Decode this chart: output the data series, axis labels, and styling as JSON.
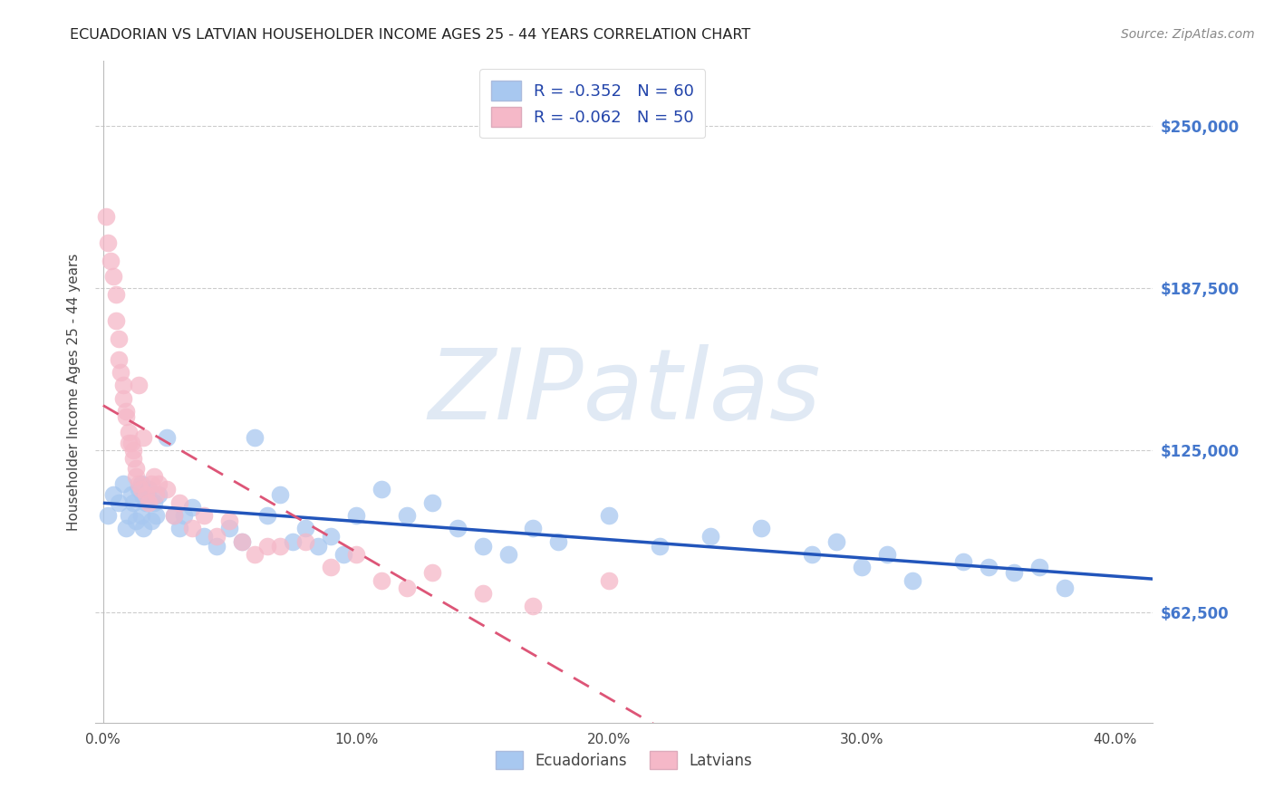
{
  "title": "ECUADORIAN VS LATVIAN HOUSEHOLDER INCOME AGES 25 - 44 YEARS CORRELATION CHART",
  "source": "Source: ZipAtlas.com",
  "ylabel": "Householder Income Ages 25 - 44 years",
  "x_tick_labels": [
    "0.0%",
    "10.0%",
    "20.0%",
    "30.0%",
    "40.0%"
  ],
  "x_tick_vals": [
    0.0,
    0.1,
    0.2,
    0.3,
    0.4
  ],
  "y_tick_labels": [
    "$62,500",
    "$125,000",
    "$187,500",
    "$250,000"
  ],
  "y_tick_vals": [
    62500,
    125000,
    187500,
    250000
  ],
  "xlim": [
    -0.003,
    0.415
  ],
  "ylim": [
    20000,
    275000
  ],
  "legend_label1": "R = -0.352   N = 60",
  "legend_label2": "R = -0.062   N = 50",
  "color_blue": "#A8C8F0",
  "color_pink": "#F5B8C8",
  "color_blue_line": "#2255BB",
  "color_pink_line": "#DD5577",
  "watermark": "ZIPatlas",
  "blue_x": [
    0.002,
    0.004,
    0.006,
    0.008,
    0.009,
    0.01,
    0.011,
    0.012,
    0.013,
    0.014,
    0.015,
    0.015,
    0.016,
    0.016,
    0.017,
    0.018,
    0.019,
    0.02,
    0.021,
    0.022,
    0.025,
    0.028,
    0.03,
    0.032,
    0.035,
    0.04,
    0.045,
    0.05,
    0.055,
    0.06,
    0.065,
    0.07,
    0.075,
    0.08,
    0.085,
    0.09,
    0.095,
    0.1,
    0.11,
    0.12,
    0.13,
    0.14,
    0.15,
    0.16,
    0.17,
    0.18,
    0.2,
    0.22,
    0.24,
    0.26,
    0.28,
    0.29,
    0.3,
    0.31,
    0.32,
    0.34,
    0.35,
    0.36,
    0.37,
    0.38
  ],
  "blue_y": [
    100000,
    108000,
    105000,
    112000,
    95000,
    100000,
    108000,
    105000,
    98000,
    110000,
    100000,
    112000,
    107000,
    95000,
    105000,
    110000,
    98000,
    105000,
    100000,
    108000,
    130000,
    100000,
    95000,
    100000,
    103000,
    92000,
    88000,
    95000,
    90000,
    130000,
    100000,
    108000,
    90000,
    95000,
    88000,
    92000,
    85000,
    100000,
    110000,
    100000,
    105000,
    95000,
    88000,
    85000,
    95000,
    90000,
    100000,
    88000,
    92000,
    95000,
    85000,
    90000,
    80000,
    85000,
    75000,
    82000,
    80000,
    78000,
    80000,
    72000
  ],
  "pink_x": [
    0.001,
    0.002,
    0.003,
    0.004,
    0.005,
    0.005,
    0.006,
    0.006,
    0.007,
    0.008,
    0.008,
    0.009,
    0.009,
    0.01,
    0.01,
    0.011,
    0.012,
    0.012,
    0.013,
    0.013,
    0.014,
    0.014,
    0.015,
    0.016,
    0.017,
    0.018,
    0.019,
    0.02,
    0.021,
    0.022,
    0.025,
    0.028,
    0.03,
    0.035,
    0.04,
    0.045,
    0.05,
    0.055,
    0.06,
    0.065,
    0.07,
    0.08,
    0.09,
    0.1,
    0.11,
    0.12,
    0.13,
    0.15,
    0.17,
    0.2
  ],
  "pink_y": [
    215000,
    205000,
    198000,
    192000,
    185000,
    175000,
    168000,
    160000,
    155000,
    150000,
    145000,
    140000,
    138000,
    132000,
    128000,
    128000,
    125000,
    122000,
    118000,
    115000,
    150000,
    112000,
    110000,
    130000,
    108000,
    105000,
    112000,
    115000,
    108000,
    112000,
    110000,
    100000,
    105000,
    95000,
    100000,
    92000,
    98000,
    90000,
    85000,
    88000,
    88000,
    90000,
    80000,
    85000,
    75000,
    72000,
    78000,
    70000,
    65000,
    75000
  ]
}
